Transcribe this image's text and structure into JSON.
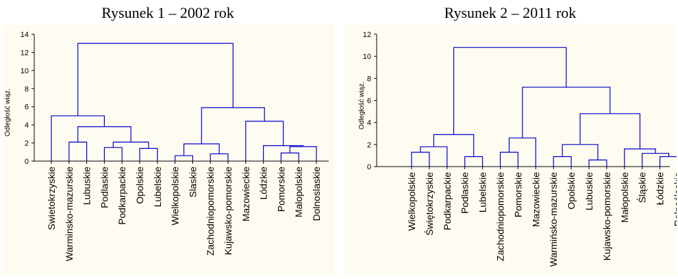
{
  "charts": [
    {
      "title": "Rysunek 1 – 2002 rok",
      "ylabel": "Odległość wiąz.",
      "chart_data": {
        "type": "dendrogram",
        "ylim": [
          0,
          14
        ],
        "yticks": [
          0,
          2,
          4,
          6,
          8,
          10,
          12,
          14
        ],
        "grid": false,
        "line_color": "#0000cc",
        "leaves": [
          "Swietokrzyskie",
          "Warminsko-mazurskie",
          "Lubuskie",
          "Podlaskie",
          "Podkarpackie",
          "Opolskie",
          "Lubelskie",
          "Wielkopolskie",
          "Slaskie",
          "Zachodniopomorskie",
          "Kujawsko-pomorskie",
          "Mazowieckie",
          "Lódzkie",
          "Pomorskie",
          "Malopolskie",
          "Dolnoslaskie"
        ],
        "merges": [
          {
            "a": 13,
            "b": 14,
            "h": 0.9
          },
          {
            "a": 3,
            "b": 4,
            "h": 1.5
          },
          {
            "a": 5,
            "b": 6,
            "h": 1.4
          },
          {
            "a": 7,
            "b": 8,
            "h": 0.6
          },
          {
            "a": 9,
            "b": 10,
            "h": 0.8
          },
          {
            "a": 1,
            "b": 2,
            "h": 2.1
          },
          {
            "a": "m1",
            "b": 15,
            "h": 1.6
          },
          {
            "a": "m2",
            "b": "m3",
            "h": 2.1
          },
          {
            "a": 12,
            "b": "m7",
            "h": 1.7
          },
          {
            "a": "m4",
            "b": "m5",
            "h": 1.9
          },
          {
            "a": "m6",
            "b": "m8",
            "h": 3.8
          },
          {
            "a": 11,
            "b": "m9",
            "h": 4.4
          },
          {
            "a": 0,
            "b": "m11",
            "h": 5.0
          },
          {
            "a": "m10",
            "b": "m12",
            "h": 5.9
          },
          {
            "a": "m13",
            "b": "m14",
            "h": 13.0
          }
        ]
      }
    },
    {
      "title": "Rysunek 2 – 2011 rok",
      "ylabel": "Odległość wiąz.",
      "chart_data": {
        "type": "dendrogram",
        "ylim": [
          0,
          12
        ],
        "yticks": [
          0,
          2,
          4,
          6,
          8,
          10,
          12
        ],
        "grid": false,
        "line_color": "#0000cc",
        "leaves": [
          "Wielkopolskie",
          "Świętokrzyskie",
          "Podkarpackie",
          "Podlaskie",
          "Lubelskie",
          "Zachodniopomorskie",
          "Pomorskie",
          "Mazowieckie",
          "Warmińsko-mazurskie",
          "Opolskie",
          "Lubuskie",
          "Kujawsko-pomorskie",
          "Małopolskie",
          "Śląskie",
          "Łódzkie",
          "Dolnośląskie"
        ],
        "merges": [
          {
            "a": 14,
            "b": 15,
            "h": 0.9
          },
          {
            "a": 3,
            "b": 4,
            "h": 0.9
          },
          {
            "a": 8,
            "b": 9,
            "h": 0.9
          },
          {
            "a": 10,
            "b": 11,
            "h": 0.6
          },
          {
            "a": 13,
            "b": "m1",
            "h": 1.2
          },
          {
            "a": 5,
            "b": 6,
            "h": 1.3
          },
          {
            "a": 0,
            "b": 1,
            "h": 1.3
          },
          {
            "a": 12,
            "b": "m5",
            "h": 1.6
          },
          {
            "a": "m7",
            "b": 2,
            "h": 1.8
          },
          {
            "a": "m3",
            "b": "m4",
            "h": 2.0
          },
          {
            "a": "m6",
            "b": 7,
            "h": 2.6
          },
          {
            "a": "m9",
            "b": "m2",
            "h": 2.9
          },
          {
            "a": "m10",
            "b": "m8",
            "h": 4.8
          },
          {
            "a": "m11",
            "b": "m13",
            "h": 7.2
          },
          {
            "a": "m12",
            "b": "m14",
            "h": 10.8
          }
        ]
      }
    }
  ]
}
